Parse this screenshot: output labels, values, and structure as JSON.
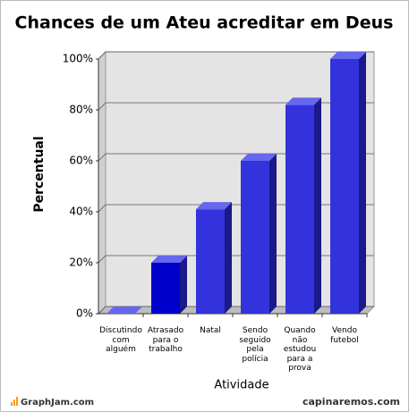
{
  "chart_data": {
    "type": "bar3d",
    "title": "Chances de um Ateu acreditar em Deus",
    "categories": [
      "Discutindo com alguém",
      "Atrasado para o trabalho",
      "Natal",
      "Sendo seguido pela polícia",
      "Quando não estudou para a prova",
      "Vendo futebol"
    ],
    "values": [
      0,
      20,
      41,
      60,
      82,
      100
    ],
    "colors": [
      "#0000cc",
      "#0000cc",
      "#3333dd",
      "#3333dd",
      "#3333dd",
      "#3333dd"
    ],
    "ylim": [
      0,
      100
    ],
    "yticks": [
      {
        "value": 0,
        "label": "0%"
      },
      {
        "value": 20,
        "label": "20%"
      },
      {
        "value": 40,
        "label": "40%"
      },
      {
        "value": 60,
        "label": "60%"
      },
      {
        "value": 80,
        "label": "80%"
      },
      {
        "value": 100,
        "label": "100%"
      }
    ],
    "grid": true,
    "xlabel": "Atividade",
    "ylabel": "Percentual",
    "footer_left": "GraphJam.com",
    "footer_right": "capinaremos.com"
  }
}
